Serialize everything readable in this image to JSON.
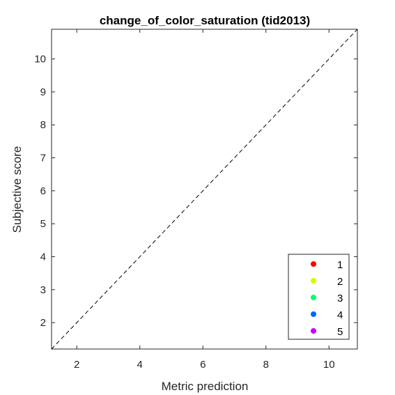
{
  "chart_data": {
    "type": "scatter",
    "title": "change_of_color_saturation (tid2013)",
    "xlabel": "Metric prediction",
    "ylabel": "Subjective score",
    "xlim": [
      1.2,
      10.9
    ],
    "ylim": [
      1.2,
      10.9
    ],
    "xticks": [
      2,
      4,
      6,
      8,
      10
    ],
    "yticks": [
      2,
      3,
      4,
      5,
      6,
      7,
      8,
      9,
      10
    ],
    "grid": false,
    "reference_line": {
      "from": [
        1.2,
        1.2
      ],
      "to": [
        10.9,
        10.9
      ],
      "style": "dashed",
      "color": "#000000"
    },
    "legend": {
      "placement": "bottom-right"
    },
    "series": [
      {
        "name": "1",
        "color": "#ff0000",
        "points": []
      },
      {
        "name": "2",
        "color": "#ccff00",
        "points": []
      },
      {
        "name": "3",
        "color": "#00ff66",
        "points": []
      },
      {
        "name": "4",
        "color": "#0066ff",
        "points": []
      },
      {
        "name": "5",
        "color": "#cc00ff",
        "points": []
      }
    ]
  }
}
